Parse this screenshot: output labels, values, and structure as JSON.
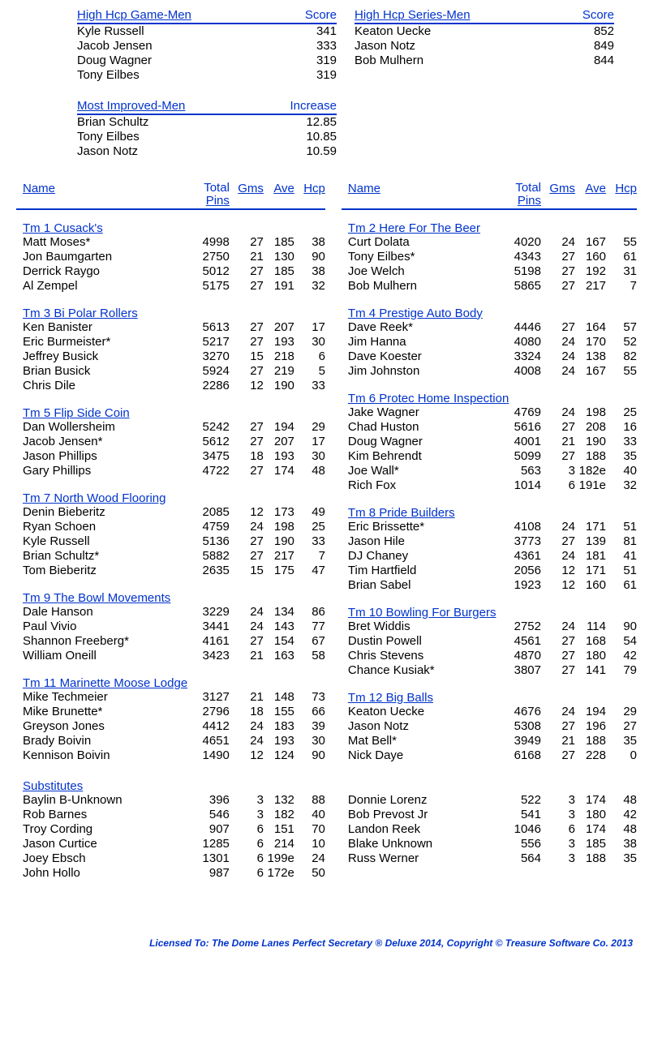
{
  "colors": {
    "accent": "#0033cc",
    "text": "#000000",
    "bg": "#ffffff"
  },
  "topTables": {
    "hcpGame": {
      "title": "High Hcp Game-Men",
      "scoreLabel": "Score",
      "rows": [
        {
          "name": "Kyle Russell",
          "val": "341"
        },
        {
          "name": "Jacob Jensen",
          "val": "333"
        },
        {
          "name": "Doug Wagner",
          "val": "319"
        },
        {
          "name": "Tony Eilbes",
          "val": "319"
        }
      ]
    },
    "hcpSeries": {
      "title": "High Hcp Series-Men",
      "scoreLabel": "Score",
      "rows": [
        {
          "name": "Keaton Uecke",
          "val": "852"
        },
        {
          "name": "Jason Notz",
          "val": "849"
        },
        {
          "name": "Bob Mulhern",
          "val": "844"
        }
      ]
    },
    "improved": {
      "title": "Most Improved-Men",
      "scoreLabel": "Increase",
      "rows": [
        {
          "name": "Brian Schultz",
          "val": "12.85"
        },
        {
          "name": "Tony Eilbes",
          "val": "10.85"
        },
        {
          "name": "Jason Notz",
          "val": "10.59"
        }
      ]
    }
  },
  "statsHeader": {
    "name": "Name",
    "total": "Total",
    "pins": "Pins",
    "gms": "Gms",
    "ave": "Ave",
    "hcp": "Hcp"
  },
  "teamsLeft": [
    {
      "title": "Tm 1 Cusack's",
      "players": [
        {
          "n": "Matt Moses*",
          "p": "4998",
          "g": "27",
          "a": "185",
          "h": "38"
        },
        {
          "n": "Jon Baumgarten",
          "p": "2750",
          "g": "21",
          "a": "130",
          "h": "90"
        },
        {
          "n": "Derrick Raygo",
          "p": "5012",
          "g": "27",
          "a": "185",
          "h": "38"
        },
        {
          "n": "Al Zempel",
          "p": "5175",
          "g": "27",
          "a": "191",
          "h": "32"
        }
      ]
    },
    {
      "title": "Tm 3 Bi Polar Rollers",
      "players": [
        {
          "n": "Ken Banister",
          "p": "5613",
          "g": "27",
          "a": "207",
          "h": "17"
        },
        {
          "n": "Eric Burmeister*",
          "p": "5217",
          "g": "27",
          "a": "193",
          "h": "30"
        },
        {
          "n": "Jeffrey Busick",
          "p": "3270",
          "g": "15",
          "a": "218",
          "h": "6"
        },
        {
          "n": "Brian Busick",
          "p": "5924",
          "g": "27",
          "a": "219",
          "h": "5"
        },
        {
          "n": "Chris Dile",
          "p": "2286",
          "g": "12",
          "a": "190",
          "h": "33"
        }
      ]
    },
    {
      "title": "Tm 5 Flip Side Coin",
      "players": [
        {
          "n": "Dan Wollersheim",
          "p": "5242",
          "g": "27",
          "a": "194",
          "h": "29"
        },
        {
          "n": "Jacob Jensen*",
          "p": "5612",
          "g": "27",
          "a": "207",
          "h": "17"
        },
        {
          "n": "Jason Phillips",
          "p": "3475",
          "g": "18",
          "a": "193",
          "h": "30"
        },
        {
          "n": "Gary Phillips",
          "p": "4722",
          "g": "27",
          "a": "174",
          "h": "48"
        }
      ]
    },
    {
      "title": "Tm 7 North Wood Flooring",
      "players": [
        {
          "n": "Denin Bieberitz",
          "p": "2085",
          "g": "12",
          "a": "173",
          "h": "49"
        },
        {
          "n": "Ryan Schoen",
          "p": "4759",
          "g": "24",
          "a": "198",
          "h": "25"
        },
        {
          "n": "Kyle Russell",
          "p": "5136",
          "g": "27",
          "a": "190",
          "h": "33"
        },
        {
          "n": "Brian Schultz*",
          "p": "5882",
          "g": "27",
          "a": "217",
          "h": "7"
        },
        {
          "n": "Tom Bieberitz",
          "p": "2635",
          "g": "15",
          "a": "175",
          "h": "47"
        }
      ]
    },
    {
      "title": "Tm 9 The Bowl Movements",
      "players": [
        {
          "n": "Dale Hanson",
          "p": "3229",
          "g": "24",
          "a": "134",
          "h": "86"
        },
        {
          "n": "Paul Vivio",
          "p": "3441",
          "g": "24",
          "a": "143",
          "h": "77"
        },
        {
          "n": "Shannon Freeberg*",
          "p": "4161",
          "g": "27",
          "a": "154",
          "h": "67"
        },
        {
          "n": "William Oneill",
          "p": "3423",
          "g": "21",
          "a": "163",
          "h": "58"
        }
      ]
    },
    {
      "title": "Tm 11 Marinette Moose Lodge",
      "players": [
        {
          "n": "Mike Techmeier",
          "p": "3127",
          "g": "21",
          "a": "148",
          "h": "73"
        },
        {
          "n": "Mike Brunette*",
          "p": "2796",
          "g": "18",
          "a": "155",
          "h": "66"
        },
        {
          "n": "Greyson Jones",
          "p": "4412",
          "g": "24",
          "a": "183",
          "h": "39"
        },
        {
          "n": "Brady Boivin",
          "p": "4651",
          "g": "24",
          "a": "193",
          "h": "30"
        },
        {
          "n": "Kennison Boivin",
          "p": "1490",
          "g": "12",
          "a": "124",
          "h": "90"
        }
      ]
    }
  ],
  "teamsRight": [
    {
      "title": "Tm 2 Here For The Beer",
      "players": [
        {
          "n": "Curt Dolata",
          "p": "4020",
          "g": "24",
          "a": "167",
          "h": "55"
        },
        {
          "n": "Tony Eilbes*",
          "p": "4343",
          "g": "27",
          "a": "160",
          "h": "61"
        },
        {
          "n": "Joe Welch",
          "p": "5198",
          "g": "27",
          "a": "192",
          "h": "31"
        },
        {
          "n": "Bob Mulhern",
          "p": "5865",
          "g": "27",
          "a": "217",
          "h": "7"
        }
      ]
    },
    {
      "title": "Tm 4 Prestige Auto Body",
      "players": [
        {
          "n": "Dave Reek*",
          "p": "4446",
          "g": "27",
          "a": "164",
          "h": "57"
        },
        {
          "n": "Jim Hanna",
          "p": "4080",
          "g": "24",
          "a": "170",
          "h": "52"
        },
        {
          "n": "Dave Koester",
          "p": "3324",
          "g": "24",
          "a": "138",
          "h": "82"
        },
        {
          "n": "Jim Johnston",
          "p": "4008",
          "g": "24",
          "a": "167",
          "h": "55"
        }
      ]
    },
    {
      "title": "Tm 6 Protec Home Inspection",
      "players": [
        {
          "n": "Jake Wagner",
          "p": "4769",
          "g": "24",
          "a": "198",
          "h": "25"
        },
        {
          "n": "Chad Huston",
          "p": "5616",
          "g": "27",
          "a": "208",
          "h": "16"
        },
        {
          "n": "Doug Wagner",
          "p": "4001",
          "g": "21",
          "a": "190",
          "h": "33"
        },
        {
          "n": "Kim Behrendt",
          "p": "5099",
          "g": "27",
          "a": "188",
          "h": "35"
        },
        {
          "n": "Joe Wall*",
          "p": "563",
          "g": "3",
          "a": "182e",
          "h": "40"
        },
        {
          "n": "Rich Fox",
          "p": "1014",
          "g": "6",
          "a": "191e",
          "h": "32"
        }
      ]
    },
    {
      "title": "Tm 8 Pride Builders",
      "players": [
        {
          "n": "Eric Brissette*",
          "p": "4108",
          "g": "24",
          "a": "171",
          "h": "51"
        },
        {
          "n": "Jason Hile",
          "p": "3773",
          "g": "27",
          "a": "139",
          "h": "81"
        },
        {
          "n": "DJ Chaney",
          "p": "4361",
          "g": "24",
          "a": "181",
          "h": "41"
        },
        {
          "n": "Tim Hartfield",
          "p": "2056",
          "g": "12",
          "a": "171",
          "h": "51"
        },
        {
          "n": "Brian Sabel",
          "p": "1923",
          "g": "12",
          "a": "160",
          "h": "61"
        }
      ]
    },
    {
      "title": "Tm 10 Bowling For Burgers",
      "players": [
        {
          "n": "Bret Widdis",
          "p": "2752",
          "g": "24",
          "a": "114",
          "h": "90"
        },
        {
          "n": "Dustin Powell",
          "p": "4561",
          "g": "27",
          "a": "168",
          "h": "54"
        },
        {
          "n": "Chris Stevens",
          "p": "4870",
          "g": "27",
          "a": "180",
          "h": "42"
        },
        {
          "n": "Chance Kusiak*",
          "p": "3807",
          "g": "27",
          "a": "141",
          "h": "79"
        }
      ]
    },
    {
      "title": "Tm 12 Big Balls",
      "players": [
        {
          "n": "Keaton Uecke",
          "p": "4676",
          "g": "24",
          "a": "194",
          "h": "29"
        },
        {
          "n": "Jason Notz",
          "p": "5308",
          "g": "27",
          "a": "196",
          "h": "27"
        },
        {
          "n": "Mat Bell*",
          "p": "3949",
          "g": "21",
          "a": "188",
          "h": "35"
        },
        {
          "n": "Nick Daye",
          "p": "6168",
          "g": "27",
          "a": "228",
          "h": "0"
        }
      ]
    }
  ],
  "subs": {
    "title": "Substitutes",
    "left": [
      {
        "n": "Baylin B-Unknown",
        "p": "396",
        "g": "3",
        "a": "132",
        "h": "88"
      },
      {
        "n": "Rob Barnes",
        "p": "546",
        "g": "3",
        "a": "182",
        "h": "40"
      },
      {
        "n": "Troy Cording",
        "p": "907",
        "g": "6",
        "a": "151",
        "h": "70"
      },
      {
        "n": "Jason Curtice",
        "p": "1285",
        "g": "6",
        "a": "214",
        "h": "10"
      },
      {
        "n": "Joey Ebsch",
        "p": "1301",
        "g": "6",
        "a": "199e",
        "h": "24"
      },
      {
        "n": "John Hollo",
        "p": "987",
        "g": "6",
        "a": "172e",
        "h": "50"
      }
    ],
    "right": [
      {
        "n": "Donnie Lorenz",
        "p": "522",
        "g": "3",
        "a": "174",
        "h": "48"
      },
      {
        "n": "Bob Prevost Jr",
        "p": "541",
        "g": "3",
        "a": "180",
        "h": "42"
      },
      {
        "n": "Landon Reek",
        "p": "1046",
        "g": "6",
        "a": "174",
        "h": "48"
      },
      {
        "n": "Blake Unknown",
        "p": "556",
        "g": "3",
        "a": "185",
        "h": "38"
      },
      {
        "n": "Russ Werner",
        "p": "564",
        "g": "3",
        "a": "188",
        "h": "35"
      }
    ]
  },
  "footer": "Licensed To: The Dome Lanes    Perfect Secretary ® Deluxe  2014, Copyright © Treasure Software Co. 2013"
}
